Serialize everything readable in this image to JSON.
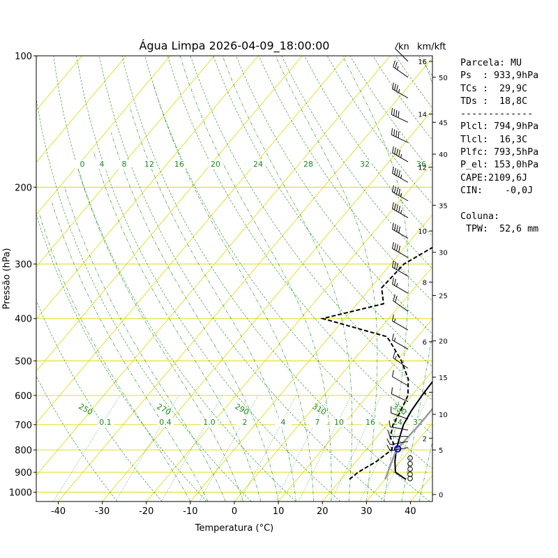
{
  "title": "Água Limpa 2026-04-09_18:00:00",
  "xlabel": "Temperatura (°C)",
  "ylabel": "Pressão (hPa)",
  "unit_kn": "kn",
  "unit_kmkft": "km/kft",
  "info_lines": [
    "Parcela: MU",
    "Ps  : 933,9hPa",
    "TCs :  29,9C",
    "TDs :  18,8C",
    "-------------",
    "Plcl: 794,9hPa",
    "Tlcl:  16,3C",
    "Plfc: 793,5hPa",
    "P_el: 153,0hPa",
    "CAPE:2109,6J",
    "CIN:    -0,0J",
    "",
    "Coluna:",
    " TPW:  52,6 mm"
  ],
  "chart_data": {
    "type": "skew-t",
    "xlim": [
      -45,
      45
    ],
    "ylim": [
      1050,
      100
    ],
    "x_ticks": [
      -40,
      -30,
      -20,
      -10,
      0,
      10,
      20,
      30,
      40
    ],
    "p_ticks": [
      100,
      200,
      300,
      400,
      500,
      600,
      700,
      800,
      900,
      1000
    ],
    "km_ticks": [
      {
        "v": "2",
        "p": 752
      },
      {
        "v": "4",
        "p": 590
      },
      {
        "v": "6",
        "p": 452
      },
      {
        "v": "8",
        "p": 330
      },
      {
        "v": "10",
        "p": 252
      },
      {
        "v": "12",
        "p": 180
      },
      {
        "v": "14",
        "p": 136
      },
      {
        "v": "16",
        "p": 103
      }
    ],
    "kft_ticks": [
      {
        "v": "0",
        "p": 1012
      },
      {
        "v": "5",
        "p": 800
      },
      {
        "v": "10",
        "p": 663
      },
      {
        "v": "15",
        "p": 545
      },
      {
        "v": "20",
        "p": 450
      },
      {
        "v": "25",
        "p": 354
      },
      {
        "v": "30",
        "p": 282
      },
      {
        "v": "35",
        "p": 220
      },
      {
        "v": "40",
        "p": 168
      },
      {
        "v": "45",
        "p": 142
      },
      {
        "v": "50",
        "p": 112
      }
    ],
    "mixing_ratio_labels": [
      "0.1",
      "0.4",
      "1.0",
      "2",
      "4",
      "7",
      "10",
      "16",
      "24",
      "32"
    ],
    "theta_labels": [
      "250",
      "270",
      "290",
      "310",
      "330"
    ],
    "theta_e_labels": [
      "0",
      "4",
      "8",
      "12",
      "16",
      "20",
      "24",
      "28",
      "32",
      "36"
    ],
    "series": [
      {
        "name": "",
        "color": "#000000",
        "dash": "solid",
        "points": [
          [
            934,
            34.7
          ],
          [
            900,
            31.0
          ],
          [
            850,
            28.8
          ],
          [
            800,
            26.9
          ],
          [
            750,
            25.3
          ],
          [
            700,
            23.7
          ],
          [
            650,
            22.8
          ],
          [
            600,
            22.3
          ],
          [
            550,
            22.0
          ],
          [
            500,
            21.3
          ],
          [
            450,
            19.5
          ],
          [
            400,
            17.1
          ],
          [
            350,
            14.2
          ],
          [
            300,
            11.3
          ],
          [
            250,
            8.0
          ],
          [
            200,
            5.5
          ],
          [
            150,
            4.3
          ],
          [
            120,
            4.3
          ],
          [
            110,
            4.8
          ],
          [
            100,
            6.3
          ]
        ]
      },
      {
        "name": "",
        "color": "#000000",
        "dash": "dashed",
        "points": [
          [
            934,
            21.9
          ],
          [
            900,
            22.5
          ],
          [
            850,
            24.6
          ],
          [
            800,
            25.8
          ],
          [
            775,
            25.2
          ],
          [
            750,
            23.2
          ],
          [
            700,
            21.3
          ],
          [
            650,
            20.4
          ],
          [
            600,
            19.1
          ],
          [
            550,
            16.0
          ],
          [
            500,
            11.0
          ],
          [
            450,
            4.5
          ],
          [
            440,
            3.0
          ],
          [
            400,
            -15.0
          ],
          [
            370,
            -4.0
          ],
          [
            340,
            -7.5
          ],
          [
            300,
            -7.0
          ],
          [
            270,
            -3.0
          ],
          [
            250,
            -1.5
          ],
          [
            230,
            -1.7
          ],
          [
            200,
            -6.4
          ],
          [
            180,
            -9.0
          ],
          [
            160,
            -10.2
          ],
          [
            140,
            -9.7
          ],
          [
            125,
            -7.6
          ],
          [
            115,
            -5.5
          ],
          [
            100,
            -4.4
          ]
        ]
      },
      {
        "name": "",
        "color": "#999999",
        "dash": "solid",
        "points": [
          [
            934,
            30.0
          ],
          [
            880,
            28.8
          ],
          [
            800,
            26.9
          ],
          [
            700,
            27.3
          ],
          [
            600,
            27.2
          ],
          [
            500,
            26.2
          ],
          [
            400,
            23.7
          ],
          [
            300,
            19.3
          ],
          [
            250,
            16.2
          ],
          [
            200,
            12.6
          ],
          [
            153,
            7.4
          ],
          [
            130,
            4.5
          ],
          [
            110,
            1.2
          ],
          [
            100,
            -0.3
          ]
        ]
      }
    ],
    "markers": [
      {
        "name": "el",
        "p": 153,
        "t": 7.4,
        "color": "#dd0000"
      },
      {
        "name": "lcl",
        "p": 795,
        "t": 27.0,
        "color": "#0000dd"
      }
    ],
    "wind_barbs": [
      {
        "p": 103,
        "spd": 10,
        "dir": 315
      },
      {
        "p": 112,
        "spd": 25,
        "dir": 305
      },
      {
        "p": 125,
        "spd": 35,
        "dir": 300
      },
      {
        "p": 142,
        "spd": 40,
        "dir": 295
      },
      {
        "p": 158,
        "spd": 40,
        "dir": 295
      },
      {
        "p": 175,
        "spd": 45,
        "dir": 300
      },
      {
        "p": 195,
        "spd": 45,
        "dir": 300
      },
      {
        "p": 215,
        "spd": 45,
        "dir": 300
      },
      {
        "p": 235,
        "spd": 45,
        "dir": 300
      },
      {
        "p": 262,
        "spd": 40,
        "dir": 300
      },
      {
        "p": 290,
        "spd": 40,
        "dir": 300
      },
      {
        "p": 320,
        "spd": 35,
        "dir": 300
      },
      {
        "p": 350,
        "spd": 25,
        "dir": 300
      },
      {
        "p": 385,
        "spd": 20,
        "dir": 305
      },
      {
        "p": 425,
        "spd": 15,
        "dir": 300
      },
      {
        "p": 470,
        "spd": 15,
        "dir": 300
      },
      {
        "p": 520,
        "spd": 15,
        "dir": 305
      },
      {
        "p": 570,
        "spd": 10,
        "dir": 300
      },
      {
        "p": 620,
        "spd": 10,
        "dir": 295
      },
      {
        "p": 680,
        "spd": 10,
        "dir": 290
      },
      {
        "p": 720,
        "spd": 10,
        "dir": 280
      },
      {
        "p": 745,
        "spd": 10,
        "dir": 270
      },
      {
        "p": 765,
        "spd": 10,
        "dir": 260
      },
      {
        "p": 790,
        "spd": 15,
        "dir": 260
      },
      {
        "p": 835,
        "spd": 0,
        "dir": 0
      },
      {
        "p": 860,
        "spd": 0,
        "dir": 0
      },
      {
        "p": 885,
        "spd": 0,
        "dir": 0
      },
      {
        "p": 910,
        "spd": 0,
        "dir": 0
      },
      {
        "p": 930,
        "spd": 0,
        "dir": 0
      }
    ]
  }
}
